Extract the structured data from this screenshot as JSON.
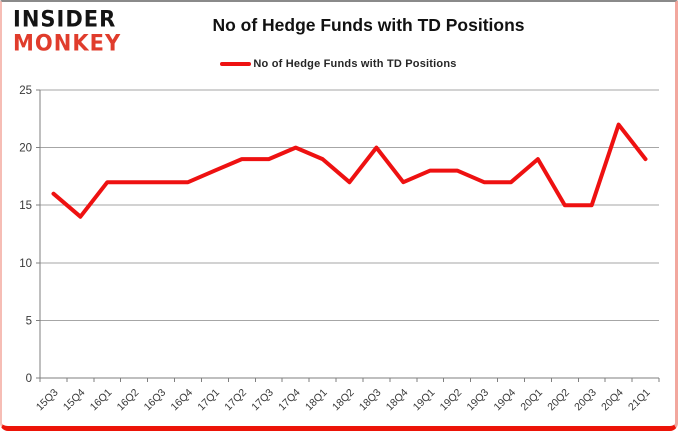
{
  "header": {
    "logo_line1": "INSIDER",
    "logo_line2": "MONKEY",
    "title": "No of Hedge Funds with TD Positions"
  },
  "legend": {
    "label": "No of Hedge Funds with TD Positions"
  },
  "colors": {
    "line": "#ee1111",
    "logo_red": "#e03c2c",
    "logo_black": "#141414",
    "grid": "#a6a6a6",
    "axis": "#7f7f7f",
    "tick_label": "#3a3a3a",
    "bottom_border": "#ec1408"
  },
  "chart_data": {
    "type": "line",
    "title": "No of Hedge Funds with TD Positions",
    "categories": [
      "15Q3",
      "15Q4",
      "16Q1",
      "16Q2",
      "16Q3",
      "16Q4",
      "17Q1",
      "17Q2",
      "17Q3",
      "17Q4",
      "18Q1",
      "18Q2",
      "18Q3",
      "18Q4",
      "19Q1",
      "19Q2",
      "19Q3",
      "19Q4",
      "20Q1",
      "20Q2",
      "20Q3",
      "20Q4",
      "21Q1"
    ],
    "series": [
      {
        "name": "No of Hedge Funds with TD Positions",
        "values": [
          16,
          14,
          17,
          17,
          17,
          17,
          18,
          19,
          19,
          20,
          19,
          17,
          20,
          17,
          18,
          18,
          17,
          17,
          19,
          15,
          15,
          22,
          19
        ]
      }
    ],
    "xlabel": "",
    "ylabel": "",
    "ylim": [
      0,
      25
    ],
    "yticks": [
      0,
      5,
      10,
      15,
      20,
      25
    ],
    "grid": true,
    "legend_position": "top-center"
  }
}
